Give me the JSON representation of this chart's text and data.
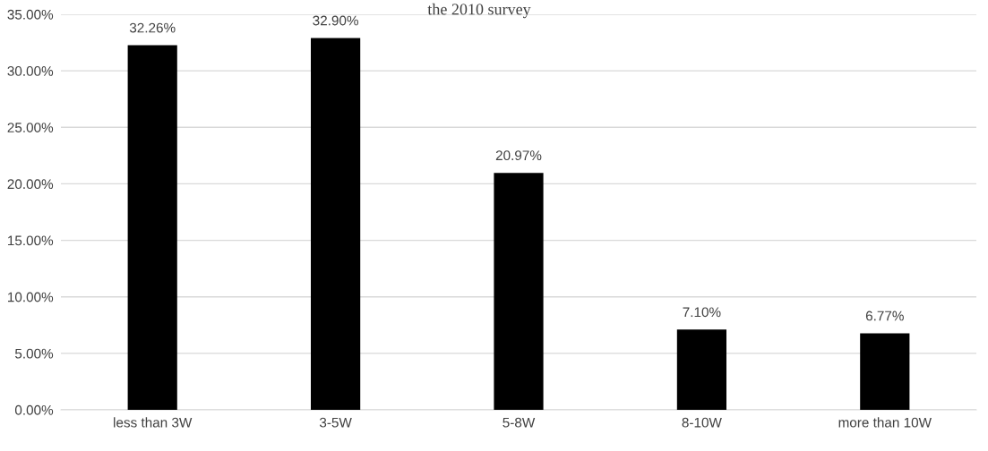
{
  "chart_data": {
    "type": "bar",
    "title": "the 2010 survey",
    "categories": [
      "less than 3W",
      "3-5W",
      "5-8W",
      "8-10W",
      "more than 10W"
    ],
    "values": [
      32.26,
      32.9,
      20.97,
      7.1,
      6.77
    ],
    "value_labels": [
      "32.26%",
      "32.90%",
      "20.97%",
      "7.10%",
      "6.77%"
    ],
    "color": "#000000",
    "ylim": [
      0,
      35
    ],
    "yticks": [
      {
        "value": 0,
        "label": "0.00%"
      },
      {
        "value": 5,
        "label": "5.00%"
      },
      {
        "value": 10,
        "label": "10.00%"
      },
      {
        "value": 15,
        "label": "15.00%"
      },
      {
        "value": 20,
        "label": "20.00%"
      },
      {
        "value": 25,
        "label": "25.00%"
      },
      {
        "value": 30,
        "label": "30.00%"
      },
      {
        "value": 35,
        "label": "35.00%"
      }
    ],
    "grid": "y"
  }
}
